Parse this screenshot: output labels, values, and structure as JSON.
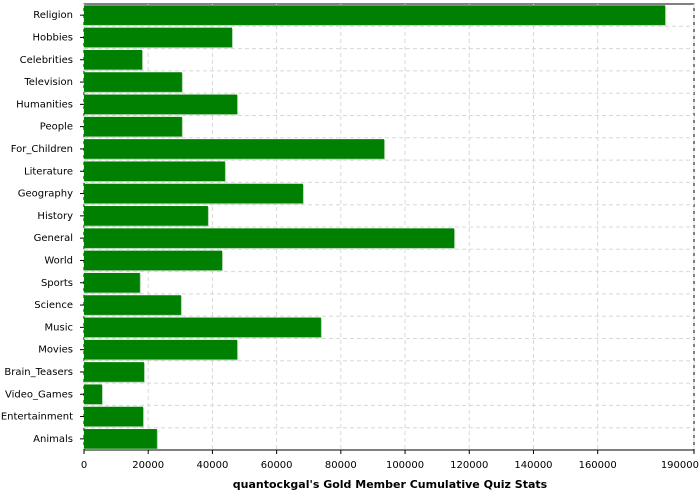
{
  "chart_data": {
    "type": "hbar",
    "title": "quantockgal's Gold Member Cumulative Quiz Stats",
    "categories": [
      "Religion",
      "Hobbies",
      "Celebrities",
      "Television",
      "Humanities",
      "People",
      "For_Children",
      "Literature",
      "Geography",
      "History",
      "General",
      "World",
      "Sports",
      "Science",
      "Music",
      "Movies",
      "Brain_Teasers",
      "Video_Games",
      "Entertainment",
      "Animals"
    ],
    "values": [
      181000,
      46100,
      18100,
      30500,
      47700,
      30500,
      93500,
      43900,
      68200,
      38600,
      115300,
      43000,
      17400,
      30200,
      73800,
      47700,
      18700,
      5600,
      18400,
      22700
    ],
    "color": "#008000",
    "xlim": [
      0,
      190000
    ],
    "xticks": [
      0,
      20000,
      40000,
      60000,
      80000,
      100000,
      120000,
      140000,
      160000,
      190000
    ],
    "grid": true
  }
}
